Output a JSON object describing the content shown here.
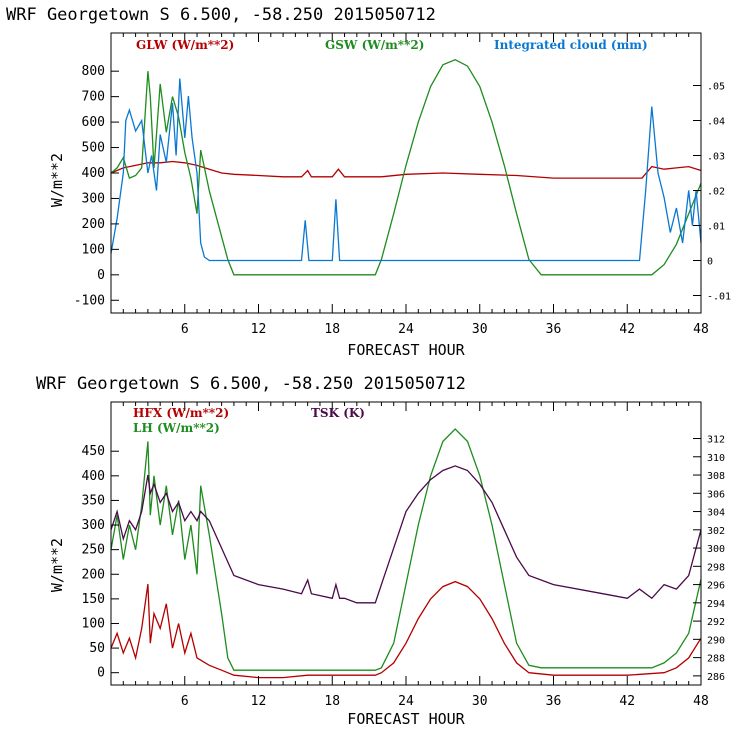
{
  "chart_data": [
    {
      "type": "line",
      "title": "WRF   Georgetown S   6.500, -58.250  2015050712",
      "xlabel": "FORECAST HOUR",
      "ylabel": "W/m**2",
      "xlim": [
        0,
        48
      ],
      "ylim": [
        -150,
        950
      ],
      "y2lim": [
        -0.015,
        0.065
      ],
      "xticks": [
        "6",
        "12",
        "18",
        "24",
        "30",
        "36",
        "42",
        "48"
      ],
      "yticks": [
        "-100",
        "0",
        "100",
        "200",
        "300",
        "400",
        "500",
        "600",
        "700",
        "800"
      ],
      "y2ticks": [
        "-.01",
        "0",
        ".01",
        ".02",
        ".03",
        ".04",
        ".05"
      ],
      "legend": [
        "GLW (W/m**2)",
        "GSW (W/m**2)",
        "Integrated cloud (mm)"
      ],
      "colors": {
        "GLW": "#b40000",
        "GSW": "#1e8c1e",
        "CLOUD": "#0a78d2"
      },
      "series": [
        {
          "name": "GLW (W/m**2)",
          "color": "#b40000",
          "axis": "left",
          "x": [
            0,
            1,
            2,
            3,
            4,
            5,
            6,
            7,
            8,
            9,
            10,
            12,
            14,
            15.5,
            16,
            16.3,
            18,
            18.5,
            19,
            20,
            22,
            24,
            27,
            30,
            33,
            36,
            39,
            42,
            43.2,
            44,
            45,
            46,
            47,
            48
          ],
          "y": [
            400,
            420,
            430,
            440,
            440,
            445,
            440,
            430,
            415,
            400,
            395,
            390,
            385,
            385,
            410,
            385,
            385,
            415,
            385,
            385,
            385,
            395,
            400,
            395,
            390,
            380,
            380,
            380,
            380,
            425,
            415,
            420,
            425,
            410
          ]
        },
        {
          "name": "GSW (W/m**2)",
          "color": "#1e8c1e",
          "axis": "left",
          "x": [
            0,
            0.5,
            1,
            1.5,
            2,
            2.5,
            3,
            3.2,
            3.5,
            4,
            4.5,
            5,
            5.5,
            6,
            6.5,
            7,
            7.3,
            8,
            9,
            9.5,
            10,
            21.5,
            22,
            23,
            24,
            25,
            26,
            27,
            28,
            29,
            30,
            31,
            32,
            33,
            34,
            35,
            42,
            44,
            45,
            46,
            47,
            48
          ],
          "y": [
            400,
            420,
            460,
            380,
            390,
            420,
            800,
            700,
            420,
            750,
            560,
            700,
            620,
            480,
            380,
            240,
            490,
            330,
            150,
            60,
            0,
            0,
            60,
            240,
            430,
            600,
            740,
            825,
            845,
            820,
            740,
            600,
            430,
            240,
            60,
            0,
            0,
            0,
            40,
            120,
            240,
            360
          ]
        },
        {
          "name": "Integrated cloud (mm)",
          "color": "#0a78d2",
          "axis": "right",
          "x": [
            0,
            0.5,
            1,
            1.2,
            1.5,
            2,
            2.5,
            3,
            3.3,
            3.7,
            4,
            4.5,
            5,
            5.3,
            5.6,
            6,
            6.3,
            6.6,
            7,
            7.3,
            7.6,
            8,
            12,
            15.5,
            15.8,
            16.1,
            18,
            18.3,
            18.6,
            19,
            24,
            43,
            43.5,
            44,
            44.5,
            45,
            45.5,
            46,
            46.5,
            47,
            47.3,
            47.6,
            48
          ],
          "y": [
            0.002,
            0.012,
            0.025,
            0.04,
            0.043,
            0.037,
            0.04,
            0.025,
            0.03,
            0.02,
            0.036,
            0.028,
            0.045,
            0.03,
            0.052,
            0.035,
            0.047,
            0.035,
            0.025,
            0.005,
            0.001,
            0,
            0,
            0,
            0.0115,
            0,
            0,
            0.0175,
            0,
            0,
            0,
            0,
            0.02,
            0.044,
            0.025,
            0.018,
            0.008,
            0.015,
            0.005,
            0.02,
            0.01,
            0.02,
            0.005
          ]
        }
      ]
    },
    {
      "type": "line",
      "title": "WRF   Georgetown S   6.500, -58.250  2015050712",
      "xlabel": "FORECAST HOUR",
      "ylabel": "W/m**2",
      "xlim": [
        0,
        48
      ],
      "ylim": [
        -25,
        550
      ],
      "y2lim": [
        285,
        316
      ],
      "xticks": [
        "6",
        "12",
        "18",
        "24",
        "30",
        "36",
        "42",
        "48"
      ],
      "yticks": [
        "0",
        "50",
        "100",
        "150",
        "200",
        "250",
        "300",
        "350",
        "400",
        "450"
      ],
      "y2ticks": [
        "286",
        "288",
        "290",
        "292",
        "294",
        "296",
        "298",
        "300",
        "302",
        "304",
        "306",
        "308",
        "310",
        "312"
      ],
      "legend": [
        "HFX (W/m**2)",
        "LH  (W/m**2)",
        "TSK (K)"
      ],
      "colors": {
        "HFX": "#b40000",
        "LH": "#1e8c1e",
        "TSK": "#4a0a4a"
      },
      "series": [
        {
          "name": "HFX (W/m**2)",
          "color": "#b40000",
          "axis": "left",
          "x": [
            0,
            0.5,
            1,
            1.5,
            2,
            2.5,
            3,
            3.2,
            3.5,
            4,
            4.5,
            5,
            5.5,
            6,
            6.5,
            7,
            8,
            9,
            10,
            12,
            14,
            16,
            18,
            20,
            21.5,
            22,
            23,
            24,
            25,
            26,
            27,
            28,
            29,
            30,
            31,
            32,
            33,
            34,
            36,
            40,
            42,
            45,
            46,
            47,
            48
          ],
          "y": [
            50,
            80,
            40,
            70,
            30,
            90,
            180,
            60,
            120,
            90,
            140,
            50,
            100,
            40,
            80,
            30,
            15,
            5,
            -5,
            -10,
            -10,
            -5,
            -5,
            -5,
            -5,
            0,
            20,
            60,
            110,
            150,
            175,
            185,
            175,
            150,
            110,
            60,
            20,
            0,
            -5,
            -5,
            -5,
            0,
            10,
            30,
            70
          ]
        },
        {
          "name": "LH  (W/m**2)",
          "color": "#1e8c1e",
          "axis": "left",
          "x": [
            0,
            0.5,
            1,
            1.5,
            2,
            2.5,
            3,
            3.2,
            3.5,
            4,
            4.5,
            5,
            5.5,
            6,
            6.5,
            7,
            7.3,
            8,
            9,
            9.5,
            10,
            12,
            14,
            16,
            18,
            20,
            21.5,
            22,
            23,
            24,
            25,
            26,
            27,
            28,
            29,
            30,
            31,
            32,
            33,
            34,
            35,
            36,
            42,
            44,
            45,
            46,
            47,
            48
          ],
          "y": [
            250,
            320,
            230,
            300,
            250,
            340,
            470,
            320,
            400,
            300,
            380,
            280,
            350,
            230,
            300,
            200,
            380,
            280,
            120,
            30,
            5,
            5,
            5,
            5,
            5,
            5,
            5,
            10,
            60,
            180,
            300,
            400,
            470,
            495,
            470,
            400,
            300,
            180,
            60,
            15,
            10,
            10,
            10,
            10,
            20,
            40,
            80,
            190
          ]
        },
        {
          "name": "TSK (K)",
          "color": "#4a0a4a",
          "axis": "right",
          "x": [
            0,
            0.5,
            1,
            1.5,
            2,
            2.5,
            3,
            3.2,
            3.5,
            4,
            4.5,
            5,
            5.5,
            6,
            6.5,
            7,
            7.3,
            8,
            9,
            10,
            12,
            14,
            15.5,
            16,
            16.3,
            18,
            18.3,
            18.6,
            19,
            20,
            21.5,
            22,
            23,
            24,
            25,
            26,
            27,
            28,
            29,
            30,
            31,
            32,
            33,
            34,
            36,
            40,
            42,
            43,
            44,
            45,
            46,
            47,
            48
          ],
          "y": [
            302,
            304,
            301,
            303,
            302,
            304,
            308,
            306,
            307,
            305,
            306,
            304,
            305,
            303,
            304,
            303,
            304,
            303,
            300,
            297,
            296,
            295.5,
            295,
            296.5,
            295,
            294.5,
            296,
            294.5,
            294.5,
            294,
            294,
            296,
            300,
            304,
            306,
            307.5,
            308.5,
            309,
            308.5,
            307,
            305,
            302,
            299,
            297,
            296,
            295,
            294.5,
            295.5,
            294.5,
            296,
            295.5,
            297,
            302
          ]
        }
      ]
    }
  ]
}
